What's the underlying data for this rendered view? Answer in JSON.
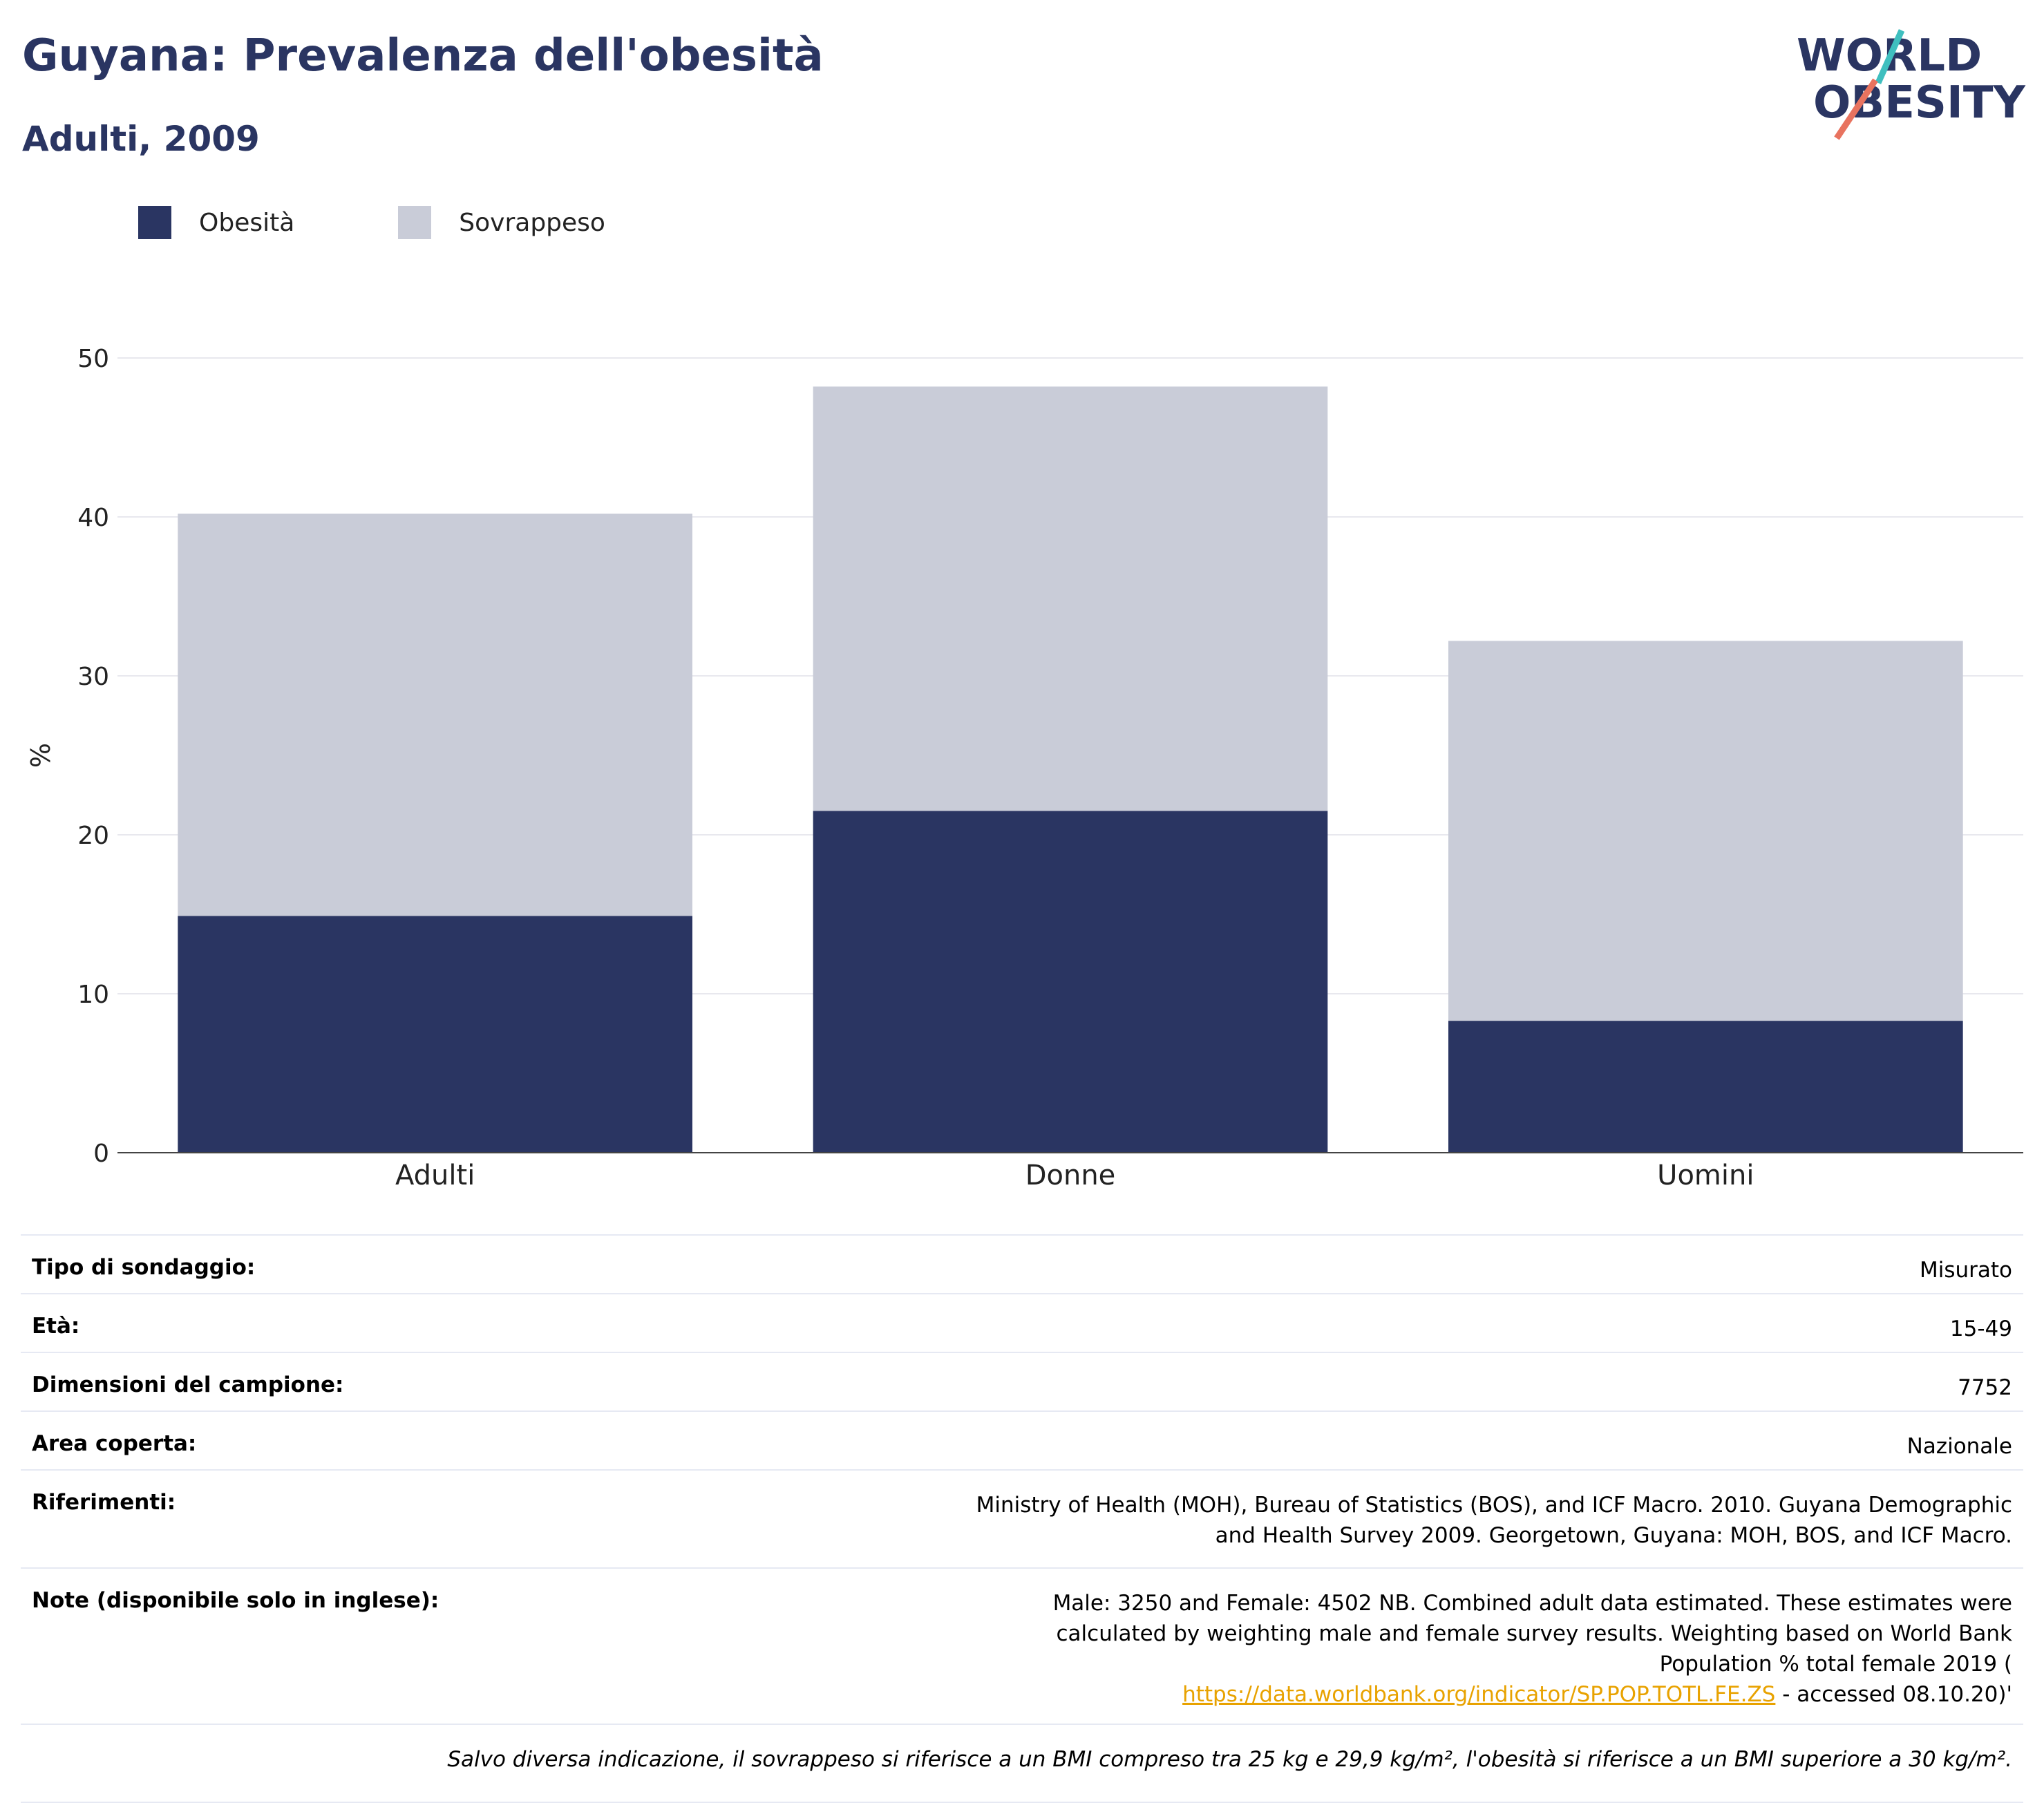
{
  "header": {
    "title": "Guyana: Prevalenza dell'obesità",
    "subtitle": "Adulti, 2009"
  },
  "logo": {
    "line1": "WORLD",
    "line2": "OBESITY"
  },
  "colors": {
    "obesity": "#2a3562",
    "overweight": "#c9ccd8",
    "title": "#2a3562",
    "link": "#e8a200"
  },
  "legend": [
    {
      "label": "Obesità",
      "color": "#2a3562"
    },
    {
      "label": "Sovrappeso",
      "color": "#c9ccd8"
    }
  ],
  "chart_data": {
    "type": "bar",
    "stacked": true,
    "categories": [
      "Adulti",
      "Donne",
      "Uomini"
    ],
    "series": [
      {
        "name": "Obesità",
        "values": [
          14.9,
          21.5,
          8.3
        ]
      },
      {
        "name": "Sovrappeso",
        "values": [
          25.3,
          26.7,
          23.9
        ]
      }
    ],
    "ylabel": "%",
    "ylim": [
      0,
      50
    ],
    "yticks": [
      0,
      10,
      20,
      30,
      40,
      50
    ],
    "grid": true,
    "legend_position": "top-left"
  },
  "info": {
    "rows": [
      {
        "label": "Tipo di sondaggio:",
        "value": "Misurato"
      },
      {
        "label": "Età:",
        "value": "15-49"
      },
      {
        "label": "Dimensioni del campione:",
        "value": "7752"
      },
      {
        "label": "Area coperta:",
        "value": "Nazionale"
      },
      {
        "label": "Riferimenti:",
        "value": "Ministry of Health (MOH), Bureau of Statistics (BOS), and ICF Macro. 2010. Guyana Demographic and Health Survey 2009. Georgetown, Guyana: MOH, BOS, and ICF Macro."
      }
    ],
    "notes": {
      "label": "Note (disponibile solo in inglese):",
      "text": "Male: 3250 and Female: 4502 NB. Combined adult data estimated. These estimates were calculated by weighting male and female survey results. Weighting based on World Bank Population % total female 2019 (",
      "link": "https://data.worldbank.org/indicator/SP.POP.TOTL.FE.ZS",
      "suffix": " - accessed 08.10.20)'"
    },
    "footnote": "Salvo diversa indicazione, il sovrappeso si riferisce a un BMI compreso tra 25 kg e 29,9 kg/m², l'obesità si riferisce a un BMI superiore a 30 kg/m²."
  }
}
